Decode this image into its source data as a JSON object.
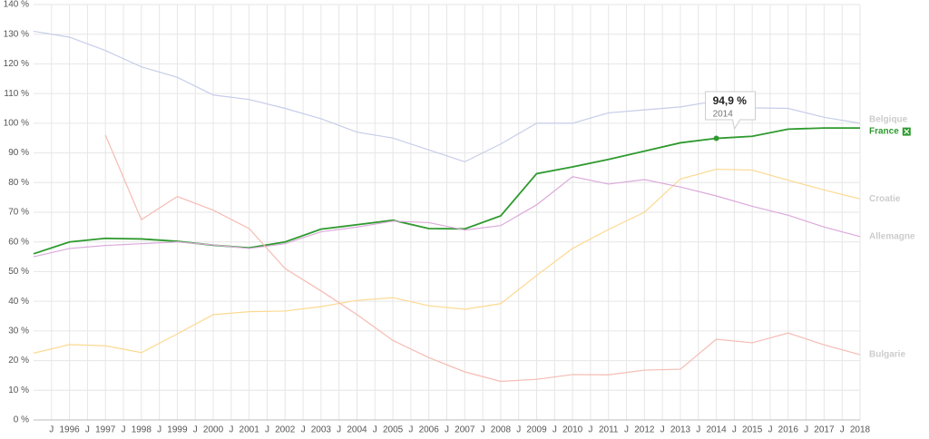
{
  "chart_data": {
    "type": "line",
    "x": [
      1995,
      1996,
      1997,
      1998,
      1999,
      2000,
      2001,
      2002,
      2003,
      2004,
      2005,
      2006,
      2007,
      2008,
      2009,
      2010,
      2011,
      2012,
      2013,
      2014,
      2015,
      2016,
      2017,
      2018
    ],
    "xlim": [
      1995,
      2018
    ],
    "xticks": [
      {
        "value": 1995.5,
        "label": "J"
      },
      1996,
      {
        "value": 1996.5,
        "label": "J"
      },
      1997,
      {
        "value": 1997.5,
        "label": "J"
      },
      1998,
      {
        "value": 1998.5,
        "label": "J"
      },
      1999,
      {
        "value": 1999.5,
        "label": "J"
      },
      2000,
      {
        "value": 2000.5,
        "label": "J"
      },
      2001,
      {
        "value": 2001.5,
        "label": "J"
      },
      2002,
      {
        "value": 2002.5,
        "label": "J"
      },
      2003,
      {
        "value": 2003.5,
        "label": "J"
      },
      2004,
      {
        "value": 2004.5,
        "label": "J"
      },
      2005,
      {
        "value": 2005.5,
        "label": "J"
      },
      2006,
      {
        "value": 2006.5,
        "label": "J"
      },
      2007,
      {
        "value": 2007.5,
        "label": "J"
      },
      2008,
      {
        "value": 2008.5,
        "label": "J"
      },
      2009,
      {
        "value": 2009.5,
        "label": "J"
      },
      2010,
      {
        "value": 2010.5,
        "label": "J"
      },
      2011,
      {
        "value": 2011.5,
        "label": "J"
      },
      2012,
      {
        "value": 2012.5,
        "label": "J"
      },
      2013,
      {
        "value": 2013.5,
        "label": "J"
      },
      2014,
      {
        "value": 2014.5,
        "label": "J"
      },
      2015,
      {
        "value": 2015.5,
        "label": "J"
      },
      2016,
      {
        "value": 2016.5,
        "label": "J"
      },
      2017,
      {
        "value": 2017.5,
        "label": "J"
      },
      2018
    ],
    "ylim": [
      0,
      140
    ],
    "yticks": [
      {
        "value": 0,
        "label": "0 %"
      },
      {
        "value": 10,
        "label": "10 %"
      },
      {
        "value": 20,
        "label": "20 %"
      },
      {
        "value": 30,
        "label": "30 %"
      },
      {
        "value": 40,
        "label": "40 %"
      },
      {
        "value": 50,
        "label": "50 %"
      },
      {
        "value": 60,
        "label": "60 %"
      },
      {
        "value": 70,
        "label": "70 %"
      },
      {
        "value": 80,
        "label": "80 %"
      },
      {
        "value": 90,
        "label": "90 %"
      },
      {
        "value": 100,
        "label": "100 %"
      },
      {
        "value": 110,
        "label": "110 %"
      },
      {
        "value": 120,
        "label": "120 %"
      },
      {
        "value": 130,
        "label": "130 %"
      },
      {
        "value": 140,
        "label": "140 %"
      }
    ],
    "grid": true,
    "series": [
      {
        "name": "Belgique",
        "color": "#c6cde9",
        "values": [
          131,
          129,
          124.5,
          119,
          115.5,
          109.5,
          108,
          105,
          101.5,
          97,
          95,
          91,
          87,
          93,
          100,
          100,
          103.5,
          104.5,
          105.5,
          107.5,
          105.2,
          105,
          102,
          100
        ]
      },
      {
        "name": "France",
        "color": "#2e9a2e",
        "selected": true,
        "values": [
          56,
          60,
          61.2,
          61,
          60.2,
          58.9,
          58,
          60,
          64.3,
          65.8,
          67.3,
          64.5,
          64.4,
          68.8,
          83,
          85.3,
          87.8,
          90.6,
          93.4,
          94.9,
          95.6,
          98,
          98.4,
          98.4
        ]
      },
      {
        "name": "Croatie",
        "color": "#fcd990",
        "values": [
          22.5,
          25.4,
          25,
          22.7,
          29,
          35.5,
          36.5,
          36.7,
          38.2,
          40.3,
          41.2,
          38.5,
          37.3,
          39.2,
          48.7,
          57.8,
          64.2,
          70,
          81.2,
          84.5,
          84.2,
          80.8,
          77.5,
          74.5
        ]
      },
      {
        "name": "Allemagne",
        "color": "#dbaadb",
        "values": [
          55,
          57.8,
          58.8,
          59.4,
          60,
          59,
          57.8,
          59.4,
          63.4,
          65,
          67,
          66.5,
          64,
          65.5,
          72.5,
          82,
          79.5,
          81,
          78.5,
          75.5,
          72,
          69,
          65,
          61.8
        ]
      },
      {
        "name": "Bulgarie",
        "color": "#f5bcb3",
        "values": [
          null,
          null,
          96,
          67.5,
          75.3,
          70.7,
          64.5,
          51,
          43.5,
          35.5,
          26.8,
          21,
          16.2,
          13,
          13.7,
          15.3,
          15.2,
          16.8,
          17.1,
          27.2,
          26,
          29.3,
          25.3,
          22
        ]
      }
    ],
    "tooltip": {
      "series": 1,
      "index": 19,
      "label": "94,9 %",
      "date": "2014"
    }
  }
}
